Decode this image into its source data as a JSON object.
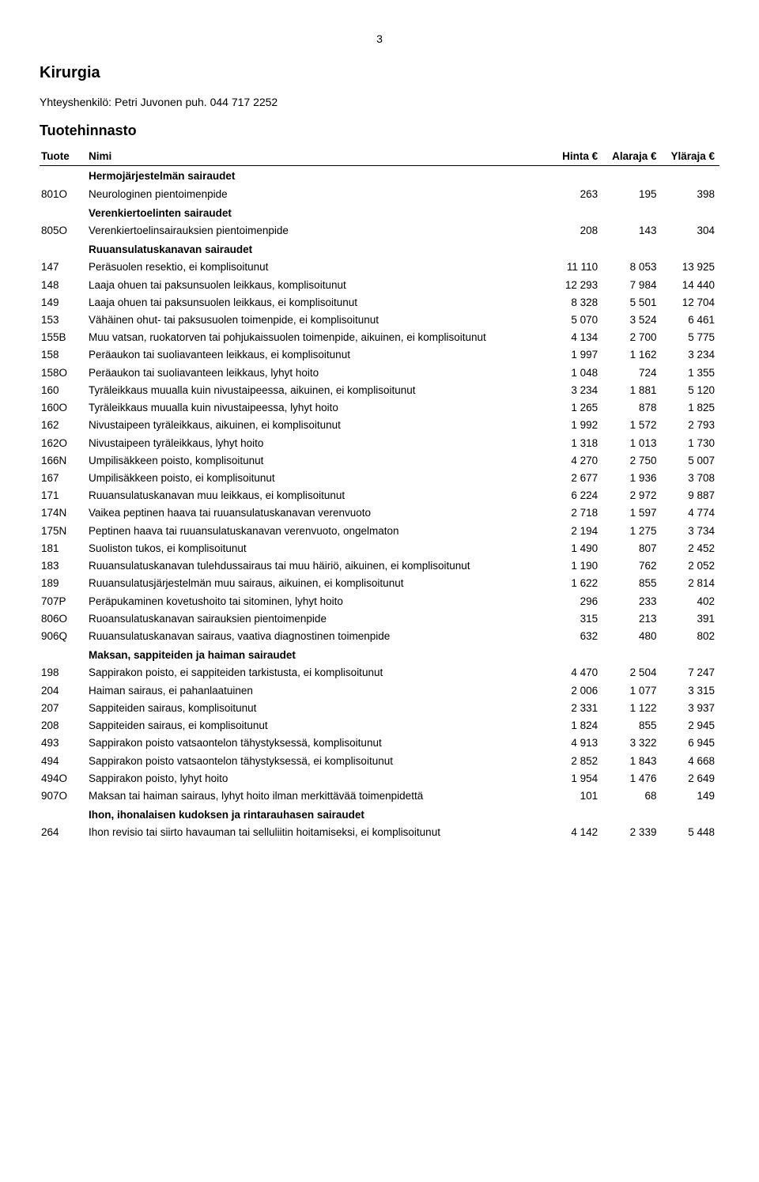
{
  "page_number": "3",
  "title": "Kirurgia",
  "contact": "Yhteyshenkilö: Petri Juvonen puh. 044 717 2252",
  "subtitle": "Tuotehinnasto",
  "columns": {
    "tuote": "Tuote",
    "nimi": "Nimi",
    "hinta": "Hinta\n€",
    "alaraja": "Alaraja\n€",
    "ylaraja": "Yläraja\n€"
  },
  "rows": [
    {
      "section": true,
      "name": "Hermojärjestelmän sairaudet"
    },
    {
      "code": "801O",
      "name": "Neurologinen pientoimenpide",
      "h": "263",
      "a": "195",
      "y": "398"
    },
    {
      "section": true,
      "name": "Verenkiertoelinten sairaudet"
    },
    {
      "code": "805O",
      "name": "Verenkiertoelinsairauksien pientoimenpide",
      "h": "208",
      "a": "143",
      "y": "304"
    },
    {
      "section": true,
      "name": "Ruuansulatuskanavan sairaudet"
    },
    {
      "code": "147",
      "name": "Peräsuolen resektio, ei komplisoitunut",
      "h": "11 110",
      "a": "8 053",
      "y": "13 925"
    },
    {
      "code": "148",
      "name": "Laaja ohuen tai paksunsuolen leikkaus, komplisoitunut",
      "h": "12 293",
      "a": "7 984",
      "y": "14 440"
    },
    {
      "code": "149",
      "name": "Laaja ohuen tai paksunsuolen leikkaus, ei komplisoitunut",
      "h": "8 328",
      "a": "5 501",
      "y": "12 704"
    },
    {
      "code": "153",
      "name": "Vähäinen ohut- tai paksusuolen toimenpide, ei komplisoitunut",
      "h": "5 070",
      "a": "3 524",
      "y": "6 461"
    },
    {
      "code": "155B",
      "name": "Muu vatsan, ruokatorven tai pohjukaissuolen toimenpide, aikuinen, ei komplisoitunut",
      "h": "4 134",
      "a": "2 700",
      "y": "5 775"
    },
    {
      "code": "158",
      "name": "Peräaukon tai suoliavanteen leikkaus, ei komplisoitunut",
      "h": "1 997",
      "a": "1 162",
      "y": "3 234"
    },
    {
      "code": "158O",
      "name": "Peräaukon tai suoliavanteen leikkaus, lyhyt hoito",
      "h": "1 048",
      "a": "724",
      "y": "1 355"
    },
    {
      "code": "160",
      "name": "Tyräleikkaus muualla kuin nivustaipeessa, aikuinen, ei komplisoitunut",
      "h": "3 234",
      "a": "1 881",
      "y": "5 120"
    },
    {
      "code": "160O",
      "name": "Tyräleikkaus muualla kuin nivustaipeessa, lyhyt hoito",
      "h": "1 265",
      "a": "878",
      "y": "1 825"
    },
    {
      "code": "162",
      "name": "Nivustaipeen tyräleikkaus, aikuinen, ei komplisoitunut",
      "h": "1 992",
      "a": "1 572",
      "y": "2 793"
    },
    {
      "code": "162O",
      "name": "Nivustaipeen tyräleikkaus, lyhyt hoito",
      "h": "1 318",
      "a": "1 013",
      "y": "1 730"
    },
    {
      "code": "166N",
      "name": "Umpilisäkkeen poisto, komplisoitunut",
      "h": "4 270",
      "a": "2 750",
      "y": "5 007"
    },
    {
      "code": "167",
      "name": "Umpilisäkkeen poisto, ei komplisoitunut",
      "h": "2 677",
      "a": "1 936",
      "y": "3 708"
    },
    {
      "code": "171",
      "name": "Ruuansulatuskanavan muu leikkaus, ei komplisoitunut",
      "h": "6 224",
      "a": "2 972",
      "y": "9 887"
    },
    {
      "code": "174N",
      "name": "Vaikea peptinen haava tai ruuansulatuskanavan verenvuoto",
      "h": "2 718",
      "a": "1 597",
      "y": "4 774"
    },
    {
      "code": "175N",
      "name": "Peptinen haava tai ruuansulatuskanavan verenvuoto, ongelmaton",
      "h": "2 194",
      "a": "1 275",
      "y": "3 734"
    },
    {
      "code": "181",
      "name": "Suoliston tukos, ei komplisoitunut",
      "h": "1 490",
      "a": "807",
      "y": "2 452"
    },
    {
      "code": "183",
      "name": "Ruuansulatuskanavan tulehdussairaus tai muu häiriö, aikuinen, ei komplisoitunut",
      "h": "1 190",
      "a": "762",
      "y": "2 052"
    },
    {
      "code": "189",
      "name": "Ruuansulatusjärjestelmän muu sairaus, aikuinen, ei komplisoitunut",
      "h": "1 622",
      "a": "855",
      "y": "2 814"
    },
    {
      "code": "707P",
      "name": "Peräpukaminen kovetushoito tai sitominen, lyhyt hoito",
      "h": "296",
      "a": "233",
      "y": "402"
    },
    {
      "code": "806O",
      "name": "Ruoansulatuskanavan sairauksien pientoimenpide",
      "h": "315",
      "a": "213",
      "y": "391"
    },
    {
      "code": "906Q",
      "name": "Ruuansulatuskanavan sairaus, vaativa diagnostinen toimenpide",
      "h": "632",
      "a": "480",
      "y": "802"
    },
    {
      "section": true,
      "name": "Maksan, sappiteiden ja haiman sairaudet"
    },
    {
      "code": "198",
      "name": "Sappirakon poisto, ei sappiteiden tarkistusta, ei komplisoitunut",
      "h": "4 470",
      "a": "2 504",
      "y": "7 247"
    },
    {
      "code": "204",
      "name": "Haiman sairaus, ei pahanlaatuinen",
      "h": "2 006",
      "a": "1 077",
      "y": "3 315"
    },
    {
      "code": "207",
      "name": "Sappiteiden sairaus, komplisoitunut",
      "h": "2 331",
      "a": "1 122",
      "y": "3 937"
    },
    {
      "code": "208",
      "name": "Sappiteiden sairaus, ei komplisoitunut",
      "h": "1 824",
      "a": "855",
      "y": "2 945"
    },
    {
      "code": "493",
      "name": "Sappirakon poisto vatsaontelon tähystyksessä, komplisoitunut",
      "h": "4 913",
      "a": "3 322",
      "y": "6 945"
    },
    {
      "code": "494",
      "name": "Sappirakon poisto vatsaontelon tähystyksessä, ei komplisoitunut",
      "h": "2 852",
      "a": "1 843",
      "y": "4 668"
    },
    {
      "code": "494O",
      "name": "Sappirakon poisto, lyhyt hoito",
      "h": "1 954",
      "a": "1 476",
      "y": "2 649"
    },
    {
      "code": "907O",
      "name": "Maksan tai haiman sairaus, lyhyt hoito ilman merkittävää toimenpidettä",
      "h": "101",
      "a": "68",
      "y": "149"
    },
    {
      "section": true,
      "name": "Ihon, ihonalaisen kudoksen ja rintarauhasen sairaudet"
    },
    {
      "code": "264",
      "name": "Ihon revisio tai siirto havauman tai selluliitin hoitamiseksi, ei komplisoitunut",
      "h": "4 142",
      "a": "2 339",
      "y": "5 448"
    }
  ]
}
